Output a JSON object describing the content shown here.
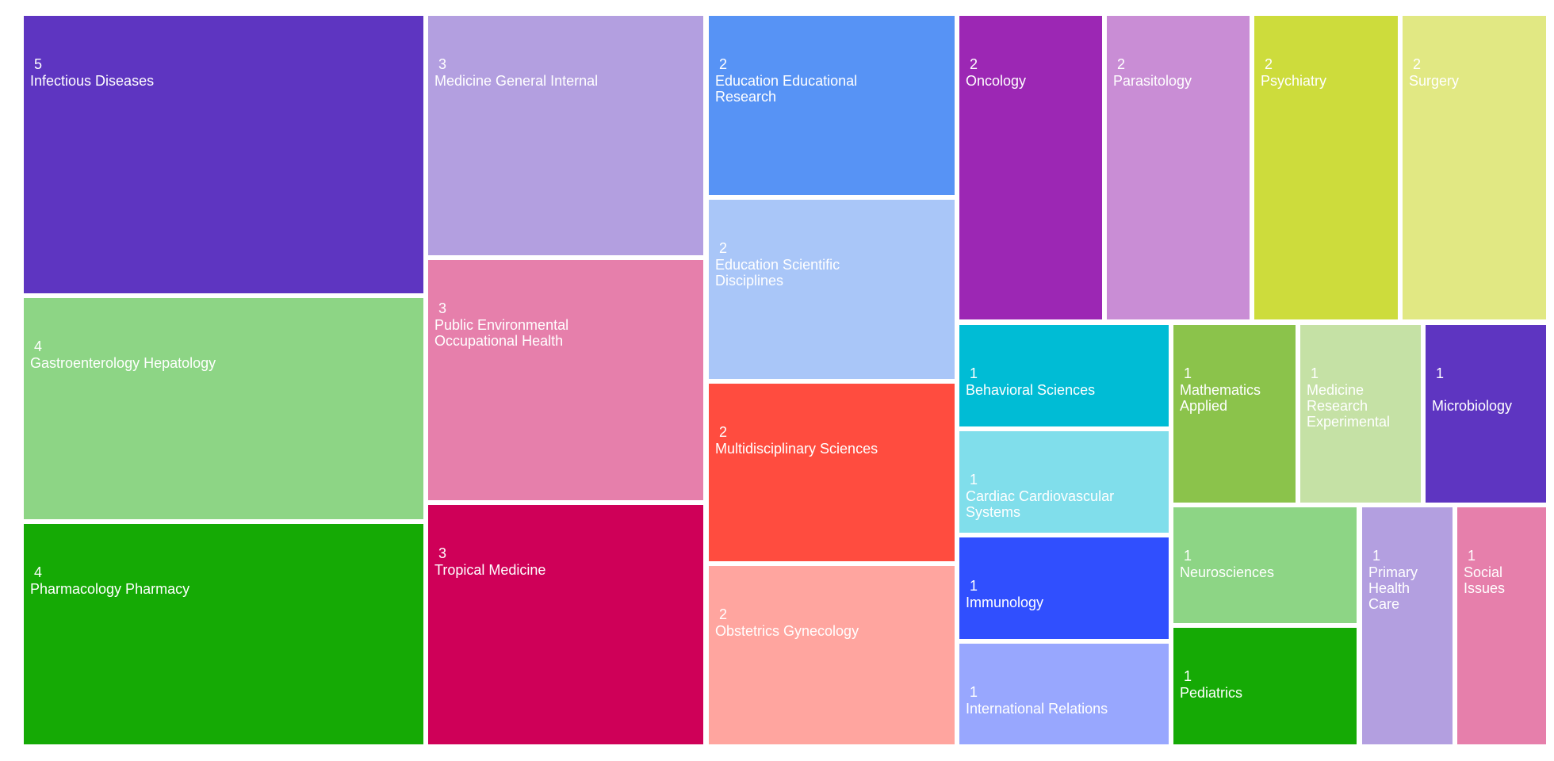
{
  "chart_data": {
    "type": "treemap",
    "title": "",
    "items": [
      {
        "name": "Infectious Diseases",
        "value": 5,
        "color": "#5e35c1"
      },
      {
        "name": "Gastroenterology Hepatology",
        "value": 4,
        "color": "#8dd585"
      },
      {
        "name": "Pharmacology Pharmacy",
        "value": 4,
        "color": "#15aa05"
      },
      {
        "name": "Medicine General Internal",
        "value": 3,
        "color": "#b39fe0"
      },
      {
        "name": "Public Environmental Occupational Health",
        "value": 3,
        "color": "#e67fab"
      },
      {
        "name": "Tropical Medicine",
        "value": 3,
        "color": "#cf0058"
      },
      {
        "name": "Education Educational Research",
        "value": 2,
        "color": "#5793f5"
      },
      {
        "name": "Education Scientific Disciplines",
        "value": 2,
        "color": "#a9c6f8"
      },
      {
        "name": "Multidisciplinary Sciences",
        "value": 2,
        "color": "#ff4c3f"
      },
      {
        "name": "Obstetrics Gynecology",
        "value": 2,
        "color": "#ffa59f"
      },
      {
        "name": "Oncology",
        "value": 2,
        "color": "#9c27b4"
      },
      {
        "name": "Parasitology",
        "value": 2,
        "color": "#c98dd5"
      },
      {
        "name": "Psychiatry",
        "value": 2,
        "color": "#cddc3c"
      },
      {
        "name": "Surgery",
        "value": 2,
        "color": "#e1e883"
      },
      {
        "name": "Behavioral Sciences",
        "value": 1,
        "color": "#00bcd5"
      },
      {
        "name": "Cardiac Cardiovascular Systems",
        "value": 1,
        "color": "#80deeb"
      },
      {
        "name": "Immunology",
        "value": 1,
        "color": "#304ffe"
      },
      {
        "name": "International Relations",
        "value": 1,
        "color": "#98a7fe"
      },
      {
        "name": "Mathematics Applied",
        "value": 1,
        "color": "#8bc34b"
      },
      {
        "name": "Medicine Research Experimental",
        "value": 1,
        "color": "#c5e1a5"
      },
      {
        "name": "Microbiology",
        "value": 1,
        "color": "#5e35c1"
      },
      {
        "name": "Neurosciences",
        "value": 1,
        "color": "#8dd585"
      },
      {
        "name": "Pediatrics",
        "value": 1,
        "color": "#15aa05"
      },
      {
        "name": "Primary Health Care",
        "value": 1,
        "color": "#b39fe0"
      },
      {
        "name": "Social Issues",
        "value": 1,
        "color": "#e67fab"
      }
    ]
  }
}
